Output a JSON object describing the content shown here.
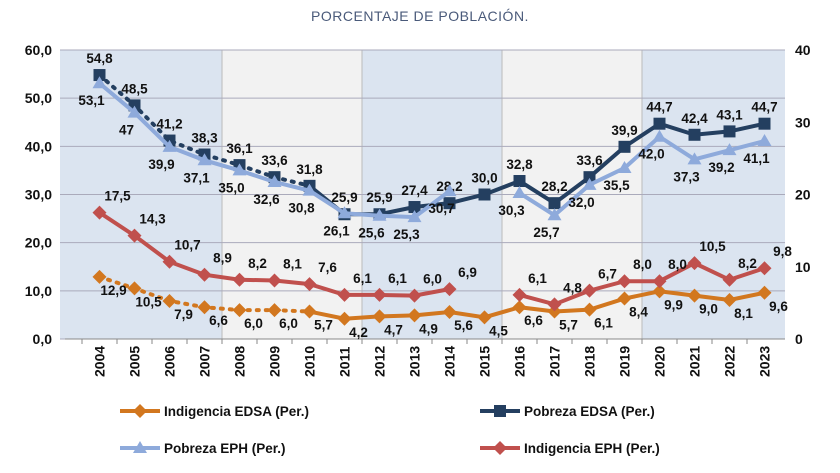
{
  "chart_data": {
    "type": "line",
    "title": "PORCENTAJE DE POBLACIÓN.",
    "x": [
      "2004",
      "2005",
      "2006",
      "2007",
      "2008",
      "2009",
      "2010",
      "2011",
      "2012",
      "2013",
      "2014",
      "2015",
      "2016",
      "2017",
      "2018",
      "2019",
      "2020",
      "2021",
      "2022",
      "2023"
    ],
    "y_left": {
      "range": [
        0,
        60
      ],
      "ticks": [
        "0,0",
        "10,0",
        "20,0",
        "30,0",
        "40,0",
        "50,0",
        "60,0"
      ]
    },
    "y_right": {
      "range": [
        0,
        40
      ],
      "ticks": [
        "0",
        "10",
        "20",
        "30",
        "40"
      ]
    },
    "grid": true,
    "legend_position": "bottom",
    "series": [
      {
        "name": "Indigencia EDSA (Per.)",
        "color": "#d2771f",
        "marker": "diamond",
        "axis": "left",
        "values": [
          12.9,
          10.5,
          7.9,
          6.6,
          6.0,
          6.0,
          5.7,
          4.2,
          4.7,
          4.9,
          5.6,
          4.5,
          6.6,
          5.7,
          6.1,
          8.4,
          9.9,
          9.0,
          8.1,
          9.6
        ],
        "labels": [
          "12,9",
          "10,5",
          "7,9",
          "6,6",
          "6,0",
          "6,0",
          "5,7",
          "4,2",
          "4,7",
          "4,9",
          "5,6",
          "4,5",
          "6,6",
          "5,7",
          "6,1",
          "8,4",
          "9,9",
          "9,0",
          "8,1",
          "9,6"
        ]
      },
      {
        "name": "Pobreza EDSA (Per.)",
        "color": "#243f60",
        "marker": "square",
        "axis": "left",
        "values": [
          54.8,
          48.5,
          41.2,
          38.3,
          36.1,
          33.6,
          31.8,
          25.9,
          25.9,
          27.4,
          28.2,
          30.0,
          32.8,
          28.2,
          33.6,
          39.9,
          44.7,
          42.4,
          43.1,
          44.7
        ],
        "labels": [
          "54,8",
          "48,5",
          "41,2",
          "38,3",
          "36,1",
          "33,6",
          "31,8",
          "25,9",
          "25,9",
          "27,4",
          "28,2",
          "30,0",
          "32,8",
          "28,2",
          "33,6",
          "39,9",
          "44,7",
          "42,4",
          "43,1",
          "44,7"
        ]
      },
      {
        "name": "Pobreza EPH (Per.)",
        "color": "#8eaadb",
        "marker": "triangle",
        "axis": "left",
        "values": [
          53.1,
          47,
          39.9,
          37.1,
          35.0,
          32.6,
          30.8,
          26.1,
          25.6,
          25.3,
          30.7,
          null,
          30.3,
          25.7,
          32.0,
          35.5,
          42.0,
          37.3,
          39.2,
          41.1
        ],
        "labels": [
          "53,1",
          "47",
          "39,9",
          "37,1",
          "35,0",
          "32,6",
          "30,8",
          "26,1",
          "25,6",
          "25,3",
          "30,7",
          "",
          "30,3",
          "25,7",
          "32,0",
          "35,5",
          "42,0",
          "37,3",
          "39,2",
          "41,1"
        ]
      },
      {
        "name": "Indigencia EPH (Per.)",
        "color": "#c0504d",
        "marker": "diamond",
        "axis": "right",
        "values": [
          17.5,
          14.3,
          10.7,
          8.9,
          8.2,
          8.1,
          7.6,
          6.1,
          6.1,
          6.0,
          6.9,
          null,
          6.1,
          4.8,
          6.7,
          8.0,
          8.0,
          10.5,
          8.2,
          9.8
        ],
        "labels": [
          "17,5",
          "14,3",
          "10,7",
          "8,9",
          "8,2",
          "8,1",
          "7,6",
          "6,1",
          "6,1",
          "6,0",
          "6,9",
          "",
          "6,1",
          "4,8",
          "6,7",
          "8,0",
          "8,0",
          "10,5",
          "8,2",
          "9,8"
        ]
      }
    ],
    "bands": {
      "shaded_color": "#dbe4f0",
      "unshaded_color": "#f2f2f2"
    }
  }
}
